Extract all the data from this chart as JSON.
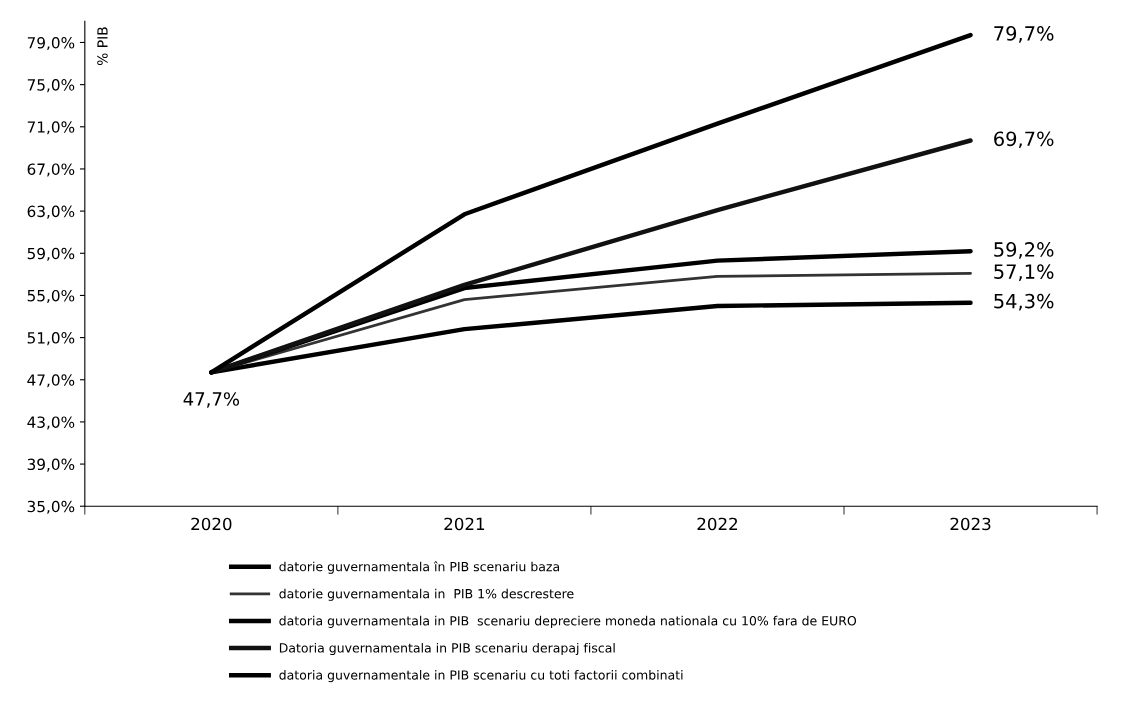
{
  "chart_data": {
    "type": "line",
    "ylabel": "% PIB",
    "categories": [
      "2020",
      "2021",
      "2022",
      "2023"
    ],
    "series": [
      {
        "name": "datorie guvernamentala în PIB scenariu baza",
        "color": "#000000",
        "values": [
          47.7,
          51.8,
          54.0,
          54.3
        ]
      },
      {
        "name": "datorie guvernamentala in  PIB 1% descrestere",
        "color": "#333333",
        "values": [
          47.7,
          54.6,
          56.8,
          57.1
        ]
      },
      {
        "name": "datoria guvernamentala in PIB  scenariu depreciere moneda nationala cu 10% fara de EURO",
        "color": "#000000",
        "values": [
          47.7,
          55.7,
          58.3,
          59.2
        ]
      },
      {
        "name": "Datoria guvernamentala in PIB scenariu derapaj fiscal",
        "color": "#111111",
        "values": [
          47.7,
          56.0,
          63.1,
          69.7
        ]
      },
      {
        "name": "datoria guvernamentale in PIB scenariu cu toti factorii combinati",
        "color": "#000000",
        "values": [
          47.7,
          62.7,
          71.3,
          79.7
        ]
      }
    ],
    "ylim": [
      35,
      81
    ],
    "yticks": [
      {
        "value": 35,
        "label": "35,0%"
      },
      {
        "value": 39,
        "label": "39,0%"
      },
      {
        "value": 43,
        "label": "43,0%"
      },
      {
        "value": 47,
        "label": "47,0%"
      },
      {
        "value": 51,
        "label": "51,0%"
      },
      {
        "value": 55,
        "label": "55,0%"
      },
      {
        "value": 59,
        "label": "59,0%"
      },
      {
        "value": 63,
        "label": "63,0%"
      },
      {
        "value": 67,
        "label": "67,0%"
      },
      {
        "value": 71,
        "label": "71,0%"
      },
      {
        "value": 75,
        "label": "75,0%"
      },
      {
        "value": 79,
        "label": "79,0%"
      }
    ],
    "annotations": [
      {
        "text": "47,7%",
        "x": "2020",
        "y": 47.7
      },
      {
        "text": "54,3%",
        "x": "2023",
        "y": 54.3
      },
      {
        "text": "57,1%",
        "x": "2023",
        "y": 57.1
      },
      {
        "text": "59,2%",
        "x": "2023",
        "y": 59.2
      },
      {
        "text": "69,7%",
        "x": "2023",
        "y": 69.7
      },
      {
        "text": "79,7%",
        "x": "2023",
        "y": 79.7
      }
    ],
    "grid": false,
    "legend": "bottom",
    "marker": "none",
    "line_style": "solid"
  }
}
